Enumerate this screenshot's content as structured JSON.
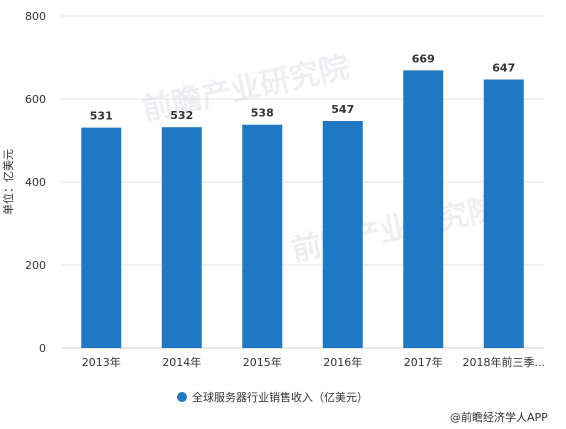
{
  "chart_data": {
    "type": "bar",
    "categories": [
      "2013年",
      "2014年",
      "2015年",
      "2016年",
      "2017年",
      "2018年前三季..."
    ],
    "series": [
      {
        "name": "全球服务器行业销售收入（亿美元）",
        "values": [
          531,
          532,
          538,
          547,
          669,
          647
        ],
        "color": "#1f78c1"
      }
    ],
    "ylabel": "单位：亿美元",
    "ylim": [
      0,
      800
    ],
    "yticks": [
      0,
      200,
      400,
      600,
      800
    ],
    "grid": true,
    "legend_position": "bottom"
  },
  "credit": "@前瞻经济学人APP",
  "watermark": "前瞻产业研究院",
  "colors": {
    "bar": "#1f78c1",
    "grid": "#d9d9d9",
    "text": "#333333"
  }
}
